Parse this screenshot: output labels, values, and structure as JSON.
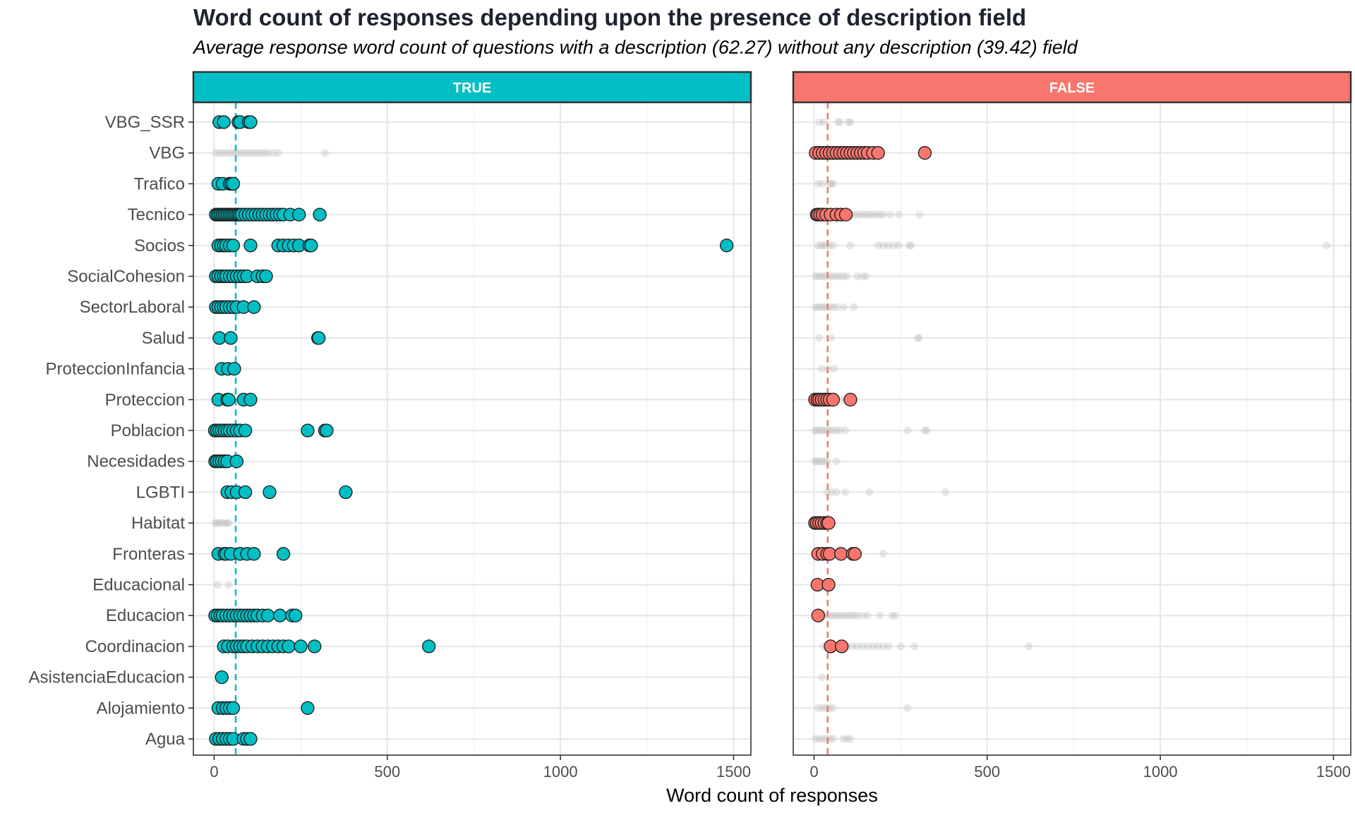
{
  "chart_data": {
    "type": "scatter",
    "title": "Word count of responses depending upon the presence of description field",
    "subtitle": "Average response word count of questions with a description (62.27) without any description (39.42) field",
    "xlabel": "Word count of responses",
    "ylabel": "",
    "xlim": [
      -60,
      1550
    ],
    "xticks": [
      0,
      500,
      1000,
      1500
    ],
    "grid": true,
    "categories": [
      "VBG_SSR",
      "VBG",
      "Trafico",
      "Tecnico",
      "Socios",
      "SocialCohesion",
      "SectorLaboral",
      "Salud",
      "ProteccionInfancia",
      "Proteccion",
      "Poblacion",
      "Necesidades",
      "LGBTI",
      "Habitat",
      "Fronteras",
      "Educacional",
      "Educacion",
      "Coordinacion",
      "AsistenciaEducacion",
      "Alojamiento",
      "Agua"
    ],
    "panels": [
      {
        "label": "TRUE",
        "color": "#00BFC4",
        "mean": 62.27,
        "points": {
          "VBG_SSR": [
            15,
            28,
            70,
            75,
            100,
            105
          ],
          "Trafico": [
            12,
            25,
            45,
            50,
            55
          ],
          "Tecnico": [
            5,
            10,
            15,
            20,
            25,
            30,
            35,
            40,
            45,
            50,
            55,
            60,
            65,
            70,
            75,
            80,
            90,
            100,
            110,
            120,
            130,
            140,
            150,
            160,
            170,
            180,
            190,
            200,
            220,
            245,
            305
          ],
          "Socios": [
            12,
            20,
            28,
            35,
            45,
            55,
            105,
            185,
            200,
            215,
            230,
            245,
            275,
            280,
            1480
          ],
          "SocialCohesion": [
            5,
            12,
            20,
            28,
            35,
            45,
            55,
            65,
            75,
            85,
            95,
            125,
            140,
            150
          ],
          "SectorLaboral": [
            5,
            12,
            20,
            28,
            35,
            45,
            55,
            65,
            85,
            115
          ],
          "Salud": [
            15,
            48,
            300,
            302
          ],
          "ProteccionInfancia": [
            22,
            40,
            58
          ],
          "Proteccion": [
            12,
            38,
            42,
            85,
            105
          ],
          "Poblacion": [
            2,
            8,
            15,
            22,
            30,
            38,
            45,
            55,
            65,
            75,
            90,
            270,
            320,
            325
          ],
          "Necesidades": [
            3,
            8,
            15,
            22,
            30,
            38,
            65
          ],
          "LGBTI": [
            38,
            50,
            65,
            90,
            160,
            380
          ],
          "Fronteras": [
            12,
            30,
            35,
            48,
            75,
            95,
            115,
            200
          ],
          "Educacion": [
            3,
            10,
            18,
            25,
            35,
            45,
            55,
            65,
            75,
            85,
            95,
            105,
            115,
            125,
            140,
            155,
            190,
            225,
            235
          ],
          "Coordinacion": [
            28,
            40,
            55,
            65,
            75,
            85,
            95,
            110,
            125,
            140,
            155,
            170,
            185,
            200,
            215,
            250,
            290,
            620
          ],
          "AsistenciaEducacion": [
            22
          ],
          "Alojamiento": [
            12,
            25,
            35,
            45,
            55,
            270
          ],
          "Agua": [
            5,
            15,
            25,
            35,
            45,
            55,
            85,
            95,
            105
          ]
        }
      },
      {
        "label": "FALSE",
        "color": "#F8766D",
        "mean": 39.42,
        "points": {
          "VBG": [
            5,
            15,
            25,
            35,
            45,
            55,
            65,
            75,
            85,
            95,
            105,
            115,
            125,
            135,
            145,
            155,
            170,
            185,
            320
          ],
          "Tecnico": [
            8,
            12,
            18,
            25,
            35,
            48,
            65,
            78,
            92
          ],
          "Proteccion": [
            3,
            10,
            15,
            22,
            30,
            38,
            45,
            55,
            105
          ],
          "Habitat": [
            3,
            8,
            15,
            22,
            30,
            38,
            42
          ],
          "Fronteras": [
            12,
            25,
            38,
            45,
            78,
            112,
            118
          ],
          "Educacional": [
            10,
            42
          ],
          "Educacion": [
            12
          ],
          "Coordinacion": [
            48,
            80
          ]
        }
      }
    ],
    "background_points_note": "grey markers show the other panel's points"
  }
}
